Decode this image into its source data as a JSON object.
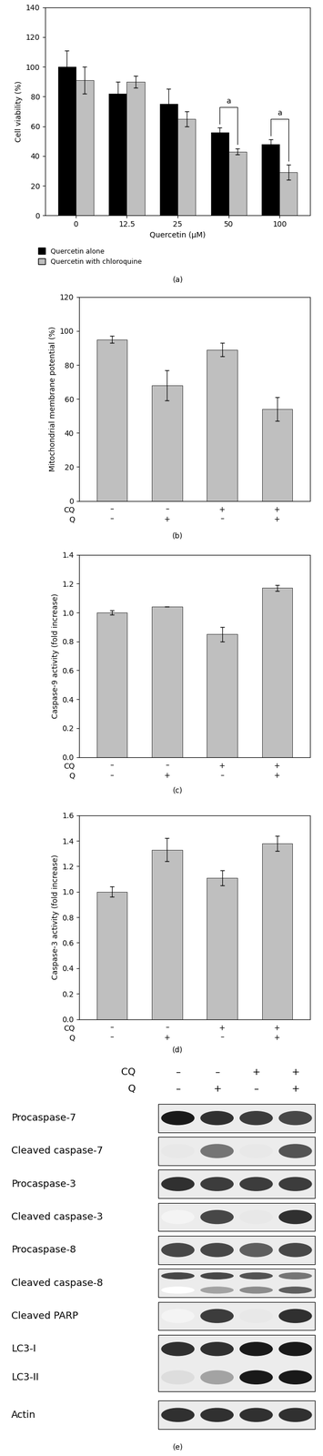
{
  "chart_data": [
    {
      "type": "bar",
      "caption": "(a)",
      "xlabel": "Quercetin (μM)",
      "ylabel": "Cell viability (%)",
      "categories": [
        "0",
        "12.5",
        "25",
        "50",
        "100"
      ],
      "series": [
        {
          "name": "Quercetin alone",
          "color": "#000000",
          "values": [
            100,
            82,
            75,
            56,
            48
          ],
          "errors": [
            11,
            8,
            10,
            3,
            3
          ]
        },
        {
          "name": "Quercetin with chloroquine",
          "color": "#bfbfbf",
          "values": [
            91,
            90,
            65,
            43,
            29
          ],
          "errors": [
            9,
            4,
            5,
            2,
            5
          ]
        }
      ],
      "ylim": [
        0,
        140
      ],
      "yticks": [
        0,
        20,
        40,
        60,
        80,
        100,
        120,
        140
      ],
      "legend": "upper left",
      "annotations": [
        {
          "text": "a",
          "category": "50"
        },
        {
          "text": "a",
          "category": "100"
        }
      ]
    },
    {
      "type": "bar",
      "caption": "(b)",
      "ylabel": "Mitochondrial membrane potential (%)",
      "color": "#bfbfbf",
      "values": [
        95,
        68,
        89,
        54
      ],
      "errors": [
        2,
        9,
        4,
        7
      ],
      "x_rows": [
        {
          "name": "CQ",
          "labels": [
            "–",
            "–",
            "+",
            "+"
          ]
        },
        {
          "name": "Q",
          "labels": [
            "–",
            "+",
            "–",
            "+"
          ]
        }
      ],
      "ylim": [
        0,
        120
      ],
      "yticks": [
        0,
        20,
        40,
        60,
        80,
        100,
        120
      ]
    },
    {
      "type": "bar",
      "caption": "(c)",
      "ylabel": "Caspase-9 activity (fold increase)",
      "color": "#bfbfbf",
      "values": [
        1.0,
        1.04,
        0.85,
        1.17
      ],
      "errors": [
        0.015,
        0,
        0.05,
        0.02
      ],
      "x_rows": [
        {
          "name": "CQ",
          "labels": [
            "–",
            "–",
            "+",
            "+"
          ]
        },
        {
          "name": "Q",
          "labels": [
            "–",
            "+",
            "–",
            "+"
          ]
        }
      ],
      "ylim": [
        0,
        1.4
      ],
      "yticks": [
        {
          "value": 0,
          "label": "0.0"
        },
        0.2,
        0.4,
        0.6,
        0.8,
        {
          "value": 1,
          "label": "1.0"
        },
        1.2,
        1.4
      ]
    },
    {
      "type": "bar",
      "caption": "(d)",
      "ylabel": "Caspase-3 activity (fold increase)",
      "color": "#bfbfbf",
      "values": [
        1.0,
        1.33,
        1.11,
        1.38
      ],
      "errors": [
        0.04,
        0.09,
        0.06,
        0.06
      ],
      "x_rows": [
        {
          "name": "CQ",
          "labels": [
            "–",
            "–",
            "+",
            "+"
          ]
        },
        {
          "name": "Q",
          "labels": [
            "–",
            "+",
            "–",
            "+"
          ]
        }
      ],
      "ylim": [
        0,
        1.6
      ],
      "yticks": [
        {
          "value": 0,
          "label": "0.0"
        },
        0.2,
        0.4,
        0.6,
        0.8,
        {
          "value": 1,
          "label": "1.0"
        },
        1.2,
        1.4,
        1.6
      ]
    }
  ],
  "blot": {
    "caption": "(e)",
    "lanes": [
      {
        "name": "CQ",
        "labels": [
          "–",
          "–",
          "+",
          "+"
        ]
      },
      {
        "name": "Q",
        "labels": [
          "–",
          "+",
          "–",
          "+"
        ]
      }
    ],
    "rows": [
      {
        "labels": [
          "Procaspase-7"
        ],
        "bands": [
          [
            1.0,
            0.9,
            0.85,
            0.8
          ]
        ]
      },
      {
        "labels": [
          "Cleaved caspase-7"
        ],
        "bands": [
          [
            0.1,
            0.6,
            0.1,
            0.75
          ]
        ]
      },
      {
        "labels": [
          "Procaspase-3"
        ],
        "bands": [
          [
            0.9,
            0.85,
            0.85,
            0.85
          ]
        ]
      },
      {
        "labels": [
          "Cleaved caspase-3"
        ],
        "bands": [
          [
            0.05,
            0.8,
            0.1,
            0.9
          ]
        ]
      },
      {
        "labels": [
          "Procaspase-8"
        ],
        "bands": [
          [
            0.8,
            0.8,
            0.7,
            0.8
          ]
        ]
      },
      {
        "labels": [
          "Cleaved caspase-8"
        ],
        "bands": [
          [
            0.8,
            0.8,
            0.75,
            0.6
          ],
          [
            0.0,
            0.4,
            0.5,
            0.7
          ]
        ]
      },
      {
        "labels": [
          "Cleaved PARP"
        ],
        "bands": [
          [
            0.05,
            0.85,
            0.1,
            0.9
          ]
        ]
      },
      {
        "labels": [
          "LC3-I",
          "LC3-II"
        ],
        "bands": [
          [
            0.9,
            0.9,
            1.0,
            1.0
          ],
          [
            0.15,
            0.4,
            1.0,
            1.0
          ]
        ]
      },
      {
        "labels": [
          "Actin"
        ],
        "bands": [
          [
            0.9,
            0.9,
            0.9,
            0.9
          ]
        ]
      }
    ]
  }
}
